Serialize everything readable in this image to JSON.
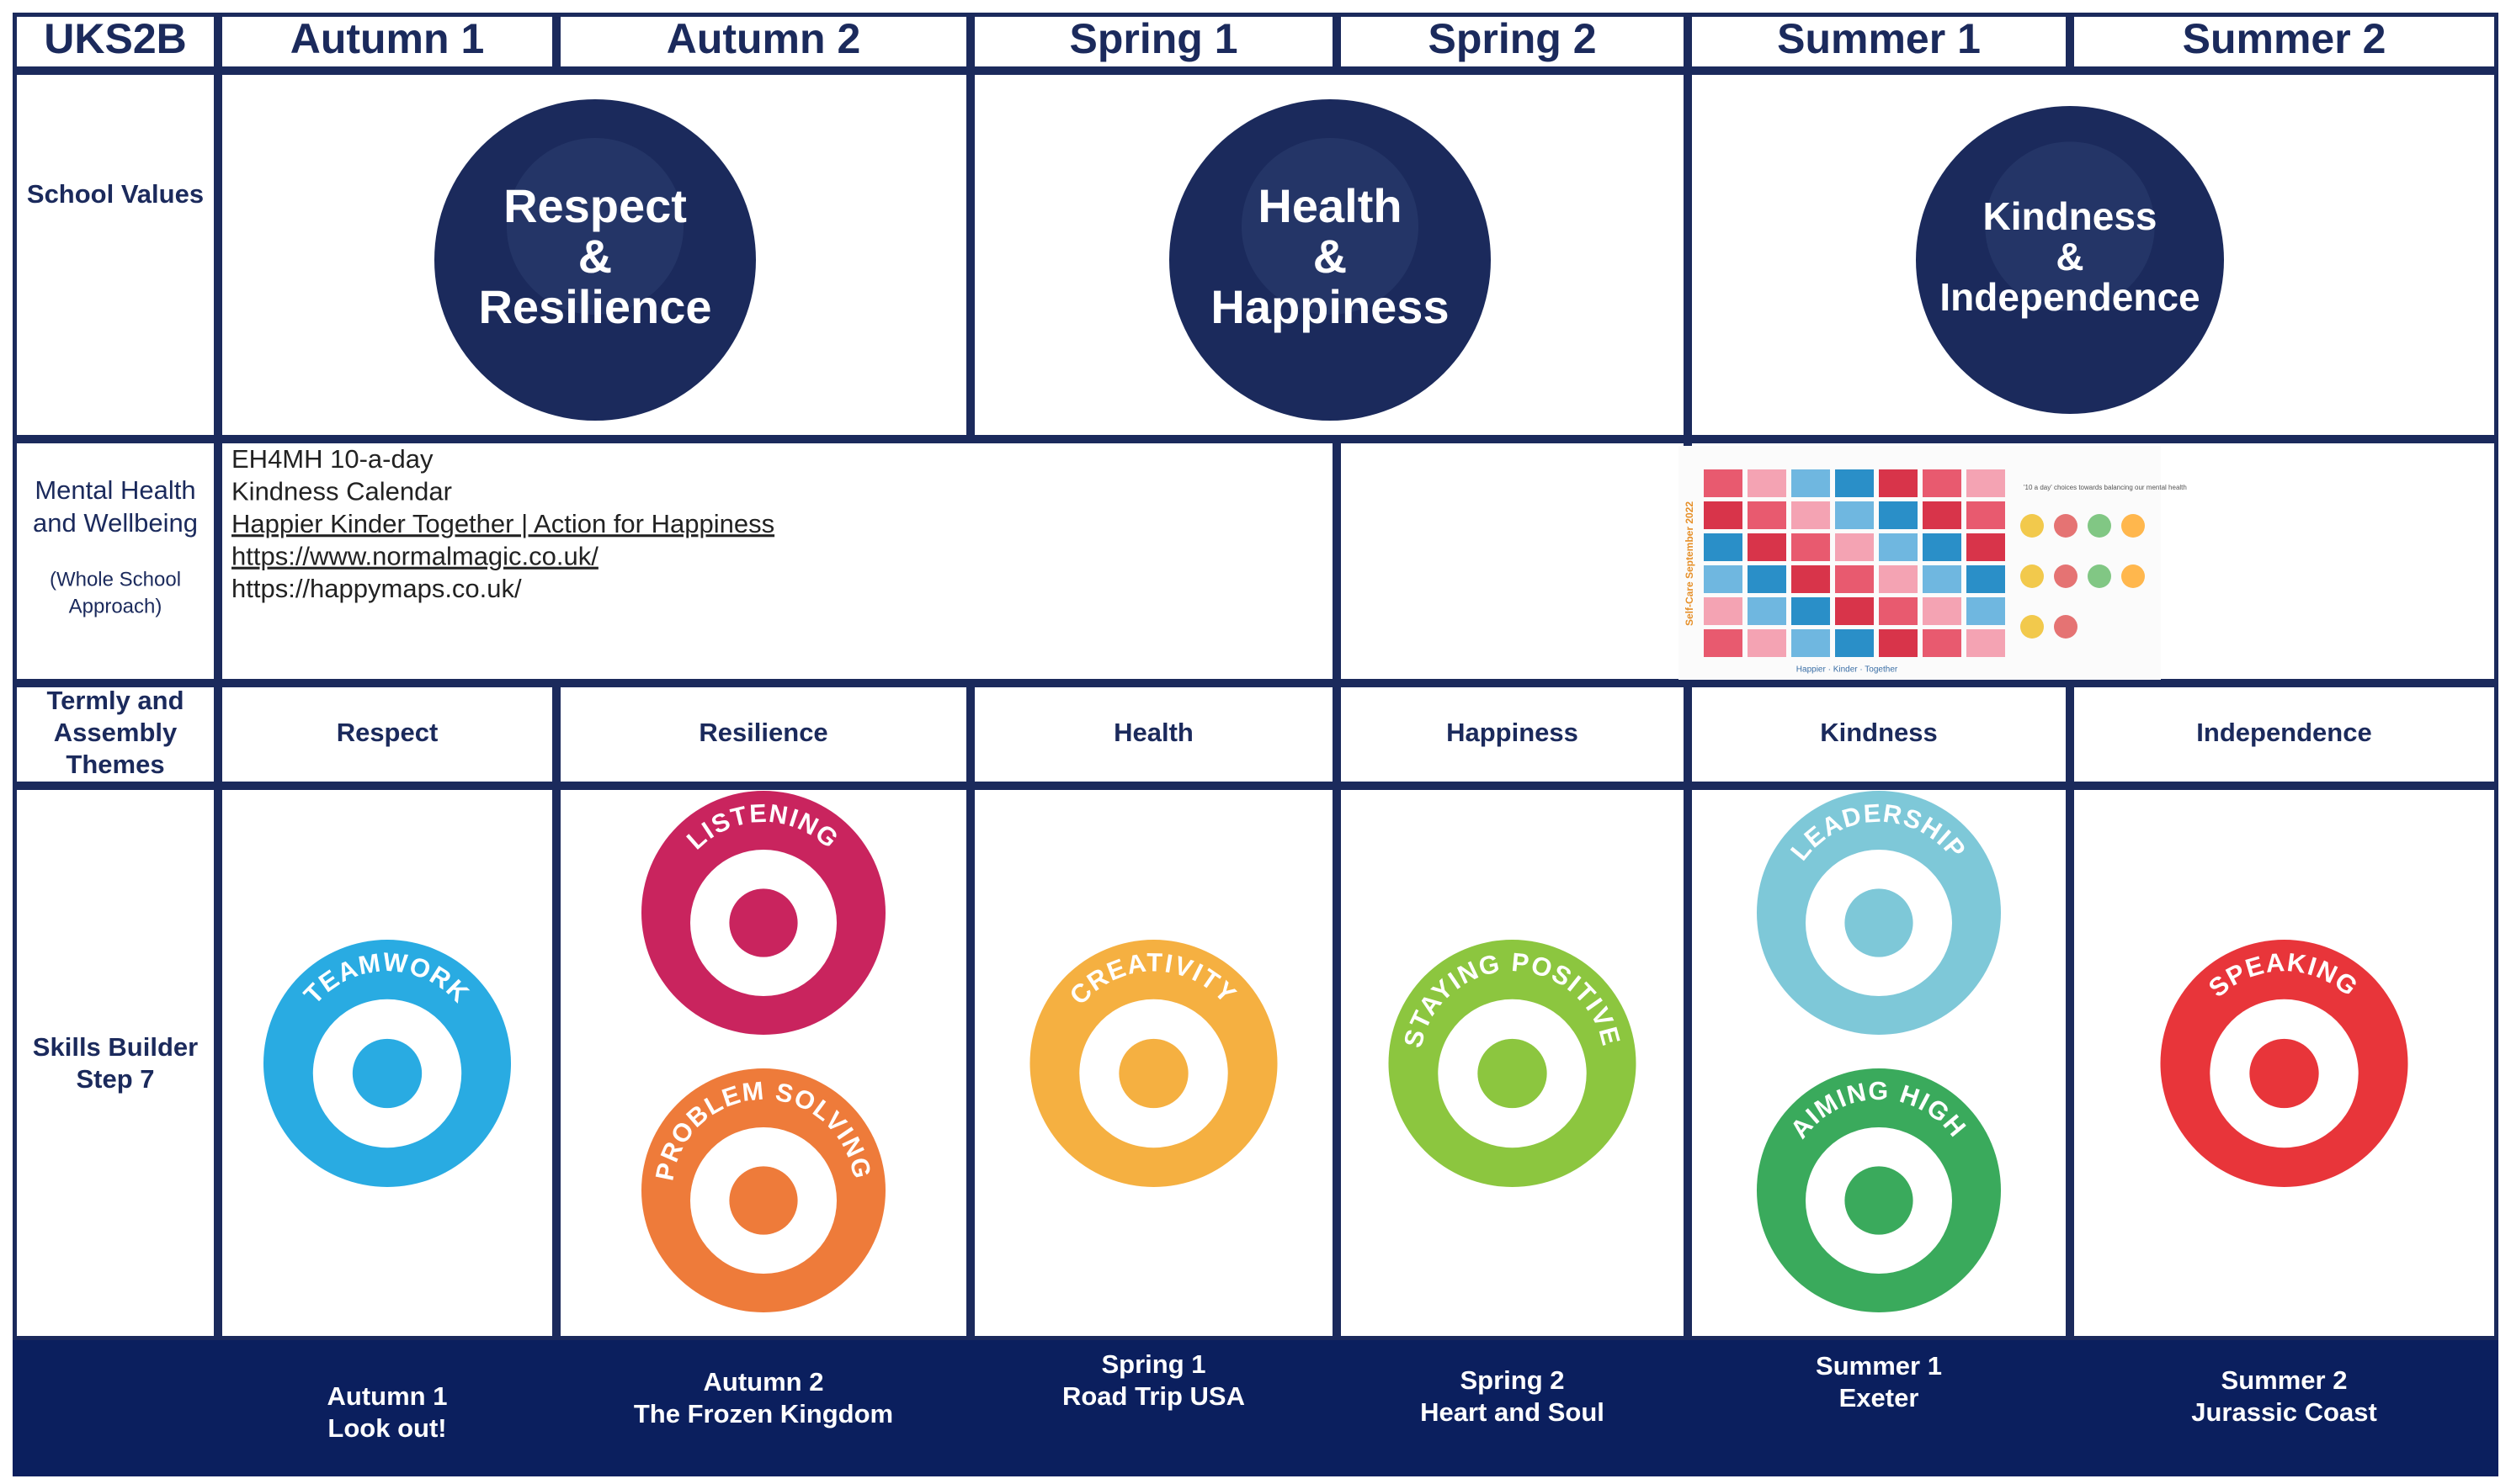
{
  "header": {
    "corner": "UKS2B",
    "terms": [
      "Autumn 1",
      "Autumn 2",
      "Spring 1",
      "Spring 2",
      "Summer 1",
      "Summer 2"
    ]
  },
  "values": {
    "label": "School Values",
    "items": [
      [
        "Respect",
        "&",
        "Resilience"
      ],
      [
        "Health",
        "&",
        "Happiness"
      ],
      [
        "Kindness",
        "&",
        "Independence"
      ]
    ]
  },
  "wellbeing": {
    "label": [
      "Mental Health",
      "and Wellbeing"
    ],
    "note": [
      "(Whole School",
      "Approach)"
    ],
    "lines": [
      "EH4MH 10-a-day",
      "Kindness Calendar",
      "Happier Kinder Together | Action for Happiness",
      "https://www.normalmagic.co.uk/",
      "https://happymaps.co.uk/"
    ],
    "calendar": {
      "title": "Self-Care September 2022",
      "subtitle": "'10 a day' choices towards balancing our mental health",
      "footer": "Happier · Kinder · Together"
    }
  },
  "themes": {
    "label": [
      "Termly and",
      "Assembly",
      "Themes"
    ],
    "items": [
      "Respect",
      "Resilience",
      "Health",
      "Happiness",
      "Kindness",
      "Independence"
    ]
  },
  "skills": {
    "label": [
      "Skills Builder",
      "Step 7"
    ],
    "columns": [
      [
        {
          "label": "TEAMWORK",
          "color": "#29abe2"
        }
      ],
      [
        {
          "label": "LISTENING",
          "color": "#c9245e"
        },
        {
          "label": "PROBLEM SOLVING",
          "color": "#ee7b3a"
        }
      ],
      [
        {
          "label": "CREATIVITY",
          "color": "#f5b041"
        }
      ],
      [
        {
          "label": "STAYING POSITIVE",
          "color": "#8cc63f"
        }
      ],
      [
        {
          "label": "LEADERSHIP",
          "color": "#7ec8d8"
        },
        {
          "label": "AIMING HIGH",
          "color": "#3aaa5c"
        }
      ],
      [
        {
          "label": "SPEAKING",
          "color": "#e8353a"
        }
      ]
    ]
  },
  "topics": [
    [
      "Autumn 1",
      "Look out!"
    ],
    [
      "Autumn 2",
      "The Frozen Kingdom"
    ],
    [
      "Spring 1",
      "Road Trip USA"
    ],
    [
      "Spring 2",
      "Heart and Soul"
    ],
    [
      "Summer 1",
      "Exeter"
    ],
    [
      "Summer 2",
      "Jurassic Coast"
    ]
  ]
}
